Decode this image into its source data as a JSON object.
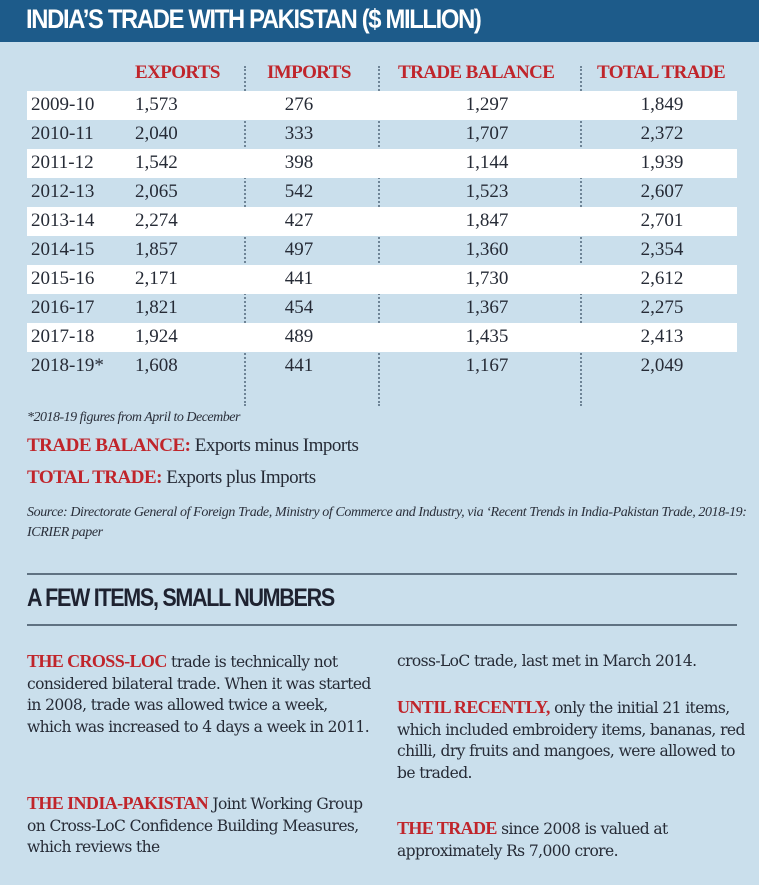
{
  "title": "INDIA’S TRADE WITH PAKISTAN ($ MILLION)",
  "table": {
    "headers": [
      "EXPORTS",
      "IMPORTS",
      "TRADE BALANCE",
      "TOTAL TRADE"
    ],
    "rows": [
      {
        "year": "2009-10",
        "exports": "1,573",
        "imports": "276",
        "balance": "1,297",
        "total": "1,849"
      },
      {
        "year": "2010-11",
        "exports": "2,040",
        "imports": "333",
        "balance": "1,707",
        "total": "2,372"
      },
      {
        "year": "2011-12",
        "exports": "1,542",
        "imports": "398",
        "balance": "1,144",
        "total": "1,939"
      },
      {
        "year": "2012-13",
        "exports": "2,065",
        "imports": "542",
        "balance": "1,523",
        "total": "2,607"
      },
      {
        "year": "2013-14",
        "exports": "2,274",
        "imports": "427",
        "balance": "1,847",
        "total": "2,701"
      },
      {
        "year": "2014-15",
        "exports": "1,857",
        "imports": "497",
        "balance": "1,360",
        "total": "2,354"
      },
      {
        "year": "2015-16",
        "exports": "2,171",
        "imports": "441",
        "balance": "1,730",
        "total": "2,612"
      },
      {
        "year": "2016-17",
        "exports": "1,821",
        "imports": "454",
        "balance": "1,367",
        "total": "2,275"
      },
      {
        "year": "2017-18",
        "exports": "1,924",
        "imports": "489",
        "balance": "1,435",
        "total": "2,413"
      },
      {
        "year": "2018-19*",
        "exports": "1,608",
        "imports": "441",
        "balance": "1,167",
        "total": "2,049"
      }
    ]
  },
  "footnote": "*2018-19 figures from April to December",
  "definitions": [
    {
      "term": "TRADE BALANCE:",
      "text": " Exports minus Imports"
    },
    {
      "term": "TOTAL TRADE:",
      "text": " Exports plus Imports"
    }
  ],
  "source": "Source: Directorate General of Foreign Trade, Ministry of Commerce and Industry, via ‘Recent Trends in India-Pakistan Trade, 2018-19: ICRIER paper",
  "section_title": "A FEW ITEMS, SMALL NUMBERS",
  "paragraphs": [
    {
      "lead": "THE CROSS-LOC",
      "text": " trade is technically not considered bilateral trade. When it was started in 2008, trade was allowed twice a week, which was increased to 4 days a week in 2011."
    },
    {
      "lead": "THE INDIA-PAKISTAN",
      "text": " Joint Working Group on Cross-LoC Confidence Building Measures, which reviews the"
    },
    {
      "lead": "",
      "text": "cross-LoC trade, last met in March 2014."
    },
    {
      "lead": "UNTIL RECENTLY,",
      "text": " only the initial 21 items, which included embroidery items, bananas, red chilli, dry fruits and mangoes, were allowed to be traded."
    },
    {
      "lead": "THE TRADE",
      "text": " since 2008 is valued at approximately Rs 7,000 crore."
    }
  ],
  "colors": {
    "header_bg": "#1d5b8a",
    "accent_red": "#c0252b",
    "panel_bg": "#cadfec",
    "text": "#262b36"
  }
}
